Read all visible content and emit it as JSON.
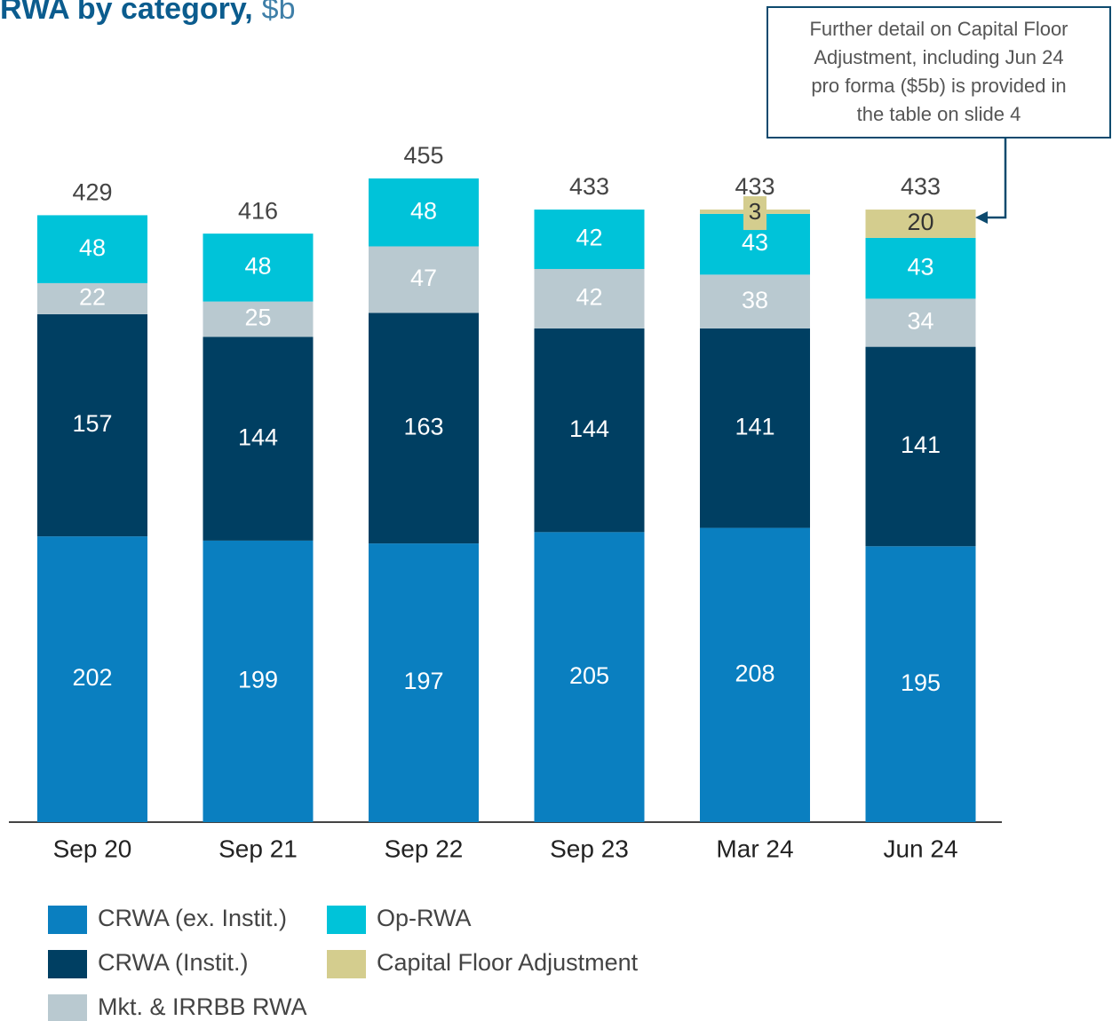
{
  "chart_data": {
    "type": "stacked_bar",
    "title": "RWA by category,",
    "subtitle": "$b",
    "categories": [
      "Sep 20",
      "Sep 21",
      "Sep 22",
      "Sep 23",
      "Mar 24",
      "Jun 24"
    ],
    "series": [
      {
        "name": "CRWA (ex. Instit.)",
        "color": "#0a7fc0",
        "values": [
          202,
          199,
          197,
          205,
          208,
          195
        ]
      },
      {
        "name": "CRWA (Instit.)",
        "color": "#003f62",
        "values": [
          157,
          144,
          163,
          144,
          141,
          141
        ]
      },
      {
        "name": "Mkt. & IRRBB RWA",
        "color": "#b9c9d0",
        "values": [
          22,
          25,
          47,
          42,
          38,
          34
        ]
      },
      {
        "name": "Op-RWA",
        "color": "#00c3d9",
        "values": [
          48,
          48,
          48,
          42,
          43,
          43
        ]
      },
      {
        "name": "Capital Floor Adjustment",
        "color": "#d4cd8e",
        "values": [
          null,
          null,
          null,
          null,
          3,
          20
        ]
      }
    ],
    "totals": [
      429,
      416,
      455,
      433,
      433,
      433
    ],
    "annotation": [
      "Further detail on Capital Floor",
      "Adjustment, including Jun 24",
      "pro forma ($5b) is provided in",
      "the table on slide 4"
    ]
  }
}
